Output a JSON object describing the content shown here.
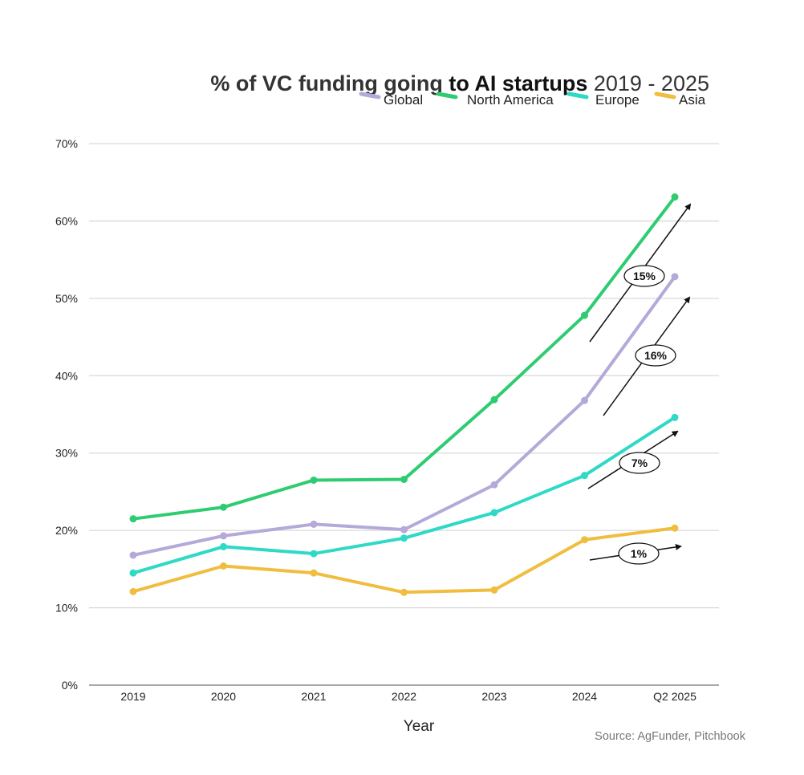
{
  "chart_data": {
    "type": "line",
    "title": {
      "part1": "% of VC funding going ",
      "part2": "to AI startups",
      "part3": " 2019 - 2025"
    },
    "xlabel": "Year",
    "ylabel": "",
    "categories": [
      "2019",
      "2020",
      "2021",
      "2022",
      "2023",
      "2024",
      "Q2 2025"
    ],
    "ylim": [
      0,
      70
    ],
    "yticks": [
      0,
      10,
      20,
      30,
      40,
      50,
      60,
      70
    ],
    "ytick_labels": [
      "0%",
      "10%",
      "20%",
      "30%",
      "40%",
      "50%",
      "60%",
      "70%"
    ],
    "grid": true,
    "legend_position": "top-right",
    "series": [
      {
        "name": "Global",
        "color": "#b4a9d8",
        "values": [
          16.8,
          19.3,
          20.8,
          20.1,
          25.9,
          36.8,
          52.8
        ]
      },
      {
        "name": "North America",
        "color": "#2ecc71",
        "values": [
          21.5,
          23.0,
          26.5,
          26.6,
          36.9,
          47.8,
          63.1
        ]
      },
      {
        "name": "Europe",
        "color": "#2ed9c6",
        "values": [
          14.5,
          17.9,
          17.0,
          19.0,
          22.3,
          27.1,
          34.6
        ]
      },
      {
        "name": "Asia",
        "color": "#f0bd3f",
        "values": [
          12.1,
          15.4,
          14.5,
          12.0,
          12.3,
          18.8,
          20.3
        ]
      }
    ],
    "annotations": [
      {
        "series": "North America",
        "label": "15%",
        "note": "growth arrow 2024 to Q2 2025"
      },
      {
        "series": "Global",
        "label": "16%",
        "note": "growth arrow 2024 to Q2 2025"
      },
      {
        "series": "Europe",
        "label": "7%",
        "note": "growth arrow 2024 to Q2 2025"
      },
      {
        "series": "Asia",
        "label": "1%",
        "note": "growth arrow 2024 to Q2 2025"
      }
    ],
    "source": "Source: AgFunder, Pitchbook"
  }
}
